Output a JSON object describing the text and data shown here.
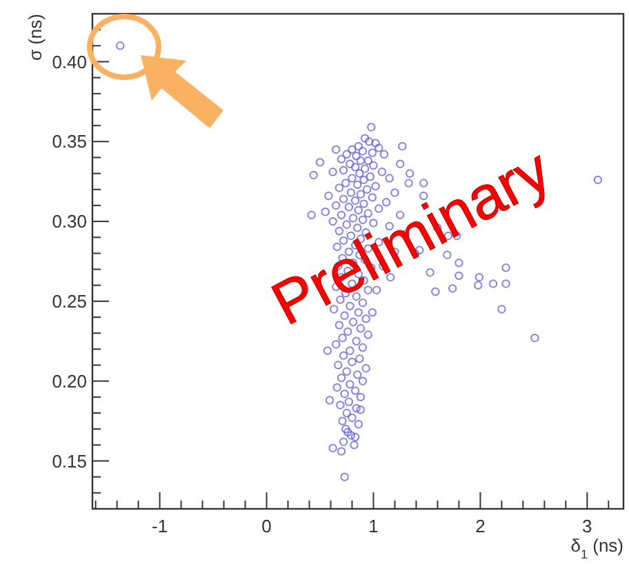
{
  "chart_data": {
    "type": "scatter",
    "xlabel": "δ$_{1}$ (ns)",
    "ylabel": "σ (ns)",
    "marker": "circle",
    "grid": false,
    "annotations": [
      "Preliminary"
    ],
    "xlim": [
      -1.63,
      3.34
    ],
    "ylim": [
      0.12,
      0.43
    ],
    "xticks": [
      {
        "value": -1.6,
        "label": null
      },
      {
        "value": -1.4,
        "label": null
      },
      {
        "value": -1.2,
        "label": null
      },
      -1,
      {
        "value": -0.8,
        "label": null
      },
      {
        "value": -0.6,
        "label": null
      },
      {
        "value": -0.4,
        "label": null
      },
      {
        "value": -0.2,
        "label": null
      },
      0,
      {
        "value": 0.2,
        "label": null
      },
      {
        "value": 0.4,
        "label": null
      },
      {
        "value": 0.6,
        "label": null
      },
      {
        "value": 0.8,
        "label": null
      },
      1,
      {
        "value": 1.2,
        "label": null
      },
      {
        "value": 1.4,
        "label": null
      },
      {
        "value": 1.6,
        "label": null
      },
      {
        "value": 1.8,
        "label": null
      },
      2,
      {
        "value": 2.2,
        "label": null
      },
      {
        "value": 2.4,
        "label": null
      },
      {
        "value": 2.6,
        "label": null
      },
      {
        "value": 2.8,
        "label": null
      },
      3,
      {
        "value": 3.2,
        "label": null
      }
    ],
    "yticks": [
      {
        "value": 0.12,
        "label": null
      },
      {
        "value": 0.13,
        "label": null
      },
      {
        "value": 0.14,
        "label": null
      },
      {
        "value": 0.15,
        "label": "0.15"
      },
      {
        "value": 0.16,
        "label": null
      },
      {
        "value": 0.17,
        "label": null
      },
      {
        "value": 0.18,
        "label": null
      },
      {
        "value": 0.19,
        "label": null
      },
      {
        "value": 0.2,
        "label": "0.20"
      },
      {
        "value": 0.21,
        "label": null
      },
      {
        "value": 0.22,
        "label": null
      },
      {
        "value": 0.23,
        "label": null
      },
      {
        "value": 0.24,
        "label": null
      },
      {
        "value": 0.25,
        "label": "0.25"
      },
      {
        "value": 0.26,
        "label": null
      },
      {
        "value": 0.27,
        "label": null
      },
      {
        "value": 0.28,
        "label": null
      },
      {
        "value": 0.29,
        "label": null
      },
      {
        "value": 0.3,
        "label": "0.30"
      },
      {
        "value": 0.31,
        "label": null
      },
      {
        "value": 0.32,
        "label": null
      },
      {
        "value": 0.33,
        "label": null
      },
      {
        "value": 0.34,
        "label": null
      },
      {
        "value": 0.35,
        "label": "0.35"
      },
      {
        "value": 0.36,
        "label": null
      },
      {
        "value": 0.37,
        "label": null
      },
      {
        "value": 0.38,
        "label": null
      },
      {
        "value": 0.39,
        "label": null
      },
      {
        "value": 0.4,
        "label": "0.40"
      },
      {
        "value": 0.41,
        "label": null
      },
      {
        "value": 0.42,
        "label": null
      }
    ],
    "series": [
      {
        "color": "#5b5bd6",
        "x": [
          -1.37,
          3.1,
          2.51,
          2.2,
          2.24,
          2.24,
          2.12,
          1.99,
          1.98,
          1.8,
          1.8,
          1.74,
          1.69,
          1.7,
          1.78,
          1.58,
          1.53,
          1.47,
          1.47,
          1.6,
          1.43,
          1.39,
          1.34,
          1.27,
          1.25,
          1.33,
          1.16,
          1.09,
          0.99,
          1.03,
          0.57,
          0.62,
          0.59,
          0.88,
          0.83,
          0.76,
          0.44,
          0.5,
          0.65,
          0.42,
          0.73,
          0.98,
          0.92,
          0.96,
          1.02,
          0.86,
          1.05,
          0.8,
          0.9,
          0.99,
          0.75,
          0.84,
          1.1,
          0.7,
          0.88,
          0.95,
          0.78,
          1.0,
          0.83,
          0.92,
          0.72,
          1.08,
          0.87,
          0.62,
          0.97,
          0.8,
          0.91,
          1.15,
          0.74,
          0.85,
          1.02,
          0.68,
          0.94,
          0.79,
          1.2,
          0.88,
          0.58,
          0.99,
          0.72,
          0.83,
          1.12,
          0.91,
          0.65,
          0.77,
          1.05,
          0.86,
          0.55,
          0.95,
          0.7,
          1.25,
          0.81,
          0.9,
          0.62,
          1.0,
          0.75,
          1.15,
          0.85,
          0.68,
          0.93,
          1.3,
          0.79,
          0.88,
          0.72,
          1.05,
          0.83,
          0.66,
          0.95,
          0.77,
          1.2,
          0.87,
          0.71,
          0.92,
          0.81,
          0.67,
          0.98,
          0.76,
          0.86,
          0.7,
          0.91,
          0.8,
          0.65,
          0.95,
          0.74,
          0.84,
          0.69,
          0.9,
          0.78,
          0.63,
          0.86,
          0.73,
          0.93,
          0.81,
          0.68,
          0.88,
          0.76,
          0.95,
          0.71,
          0.84,
          0.65,
          0.9,
          0.78,
          0.72,
          0.87,
          0.8,
          0.67,
          0.93,
          0.75,
          0.85,
          0.7,
          0.9,
          0.78,
          0.66,
          0.83,
          0.73,
          0.88,
          0.77,
          0.69,
          0.84,
          0.75,
          0.8,
          0.71,
          0.86,
          0.74,
          0.79,
          0.72,
          0.82,
          0.7
        ],
        "values": [
          0.41,
          0.326,
          0.227,
          0.245,
          0.271,
          0.261,
          0.261,
          0.265,
          0.26,
          0.266,
          0.274,
          0.258,
          0.279,
          0.291,
          0.291,
          0.256,
          0.268,
          0.324,
          0.316,
          0.296,
          0.282,
          0.28,
          0.33,
          0.347,
          0.336,
          0.324,
          0.265,
          0.272,
          0.243,
          0.257,
          0.219,
          0.158,
          0.188,
          0.182,
          0.165,
          0.168,
          0.329,
          0.337,
          0.345,
          0.304,
          0.14,
          0.359,
          0.352,
          0.35,
          0.349,
          0.347,
          0.346,
          0.345,
          0.344,
          0.343,
          0.342,
          0.341,
          0.342,
          0.339,
          0.338,
          0.338,
          0.336,
          0.335,
          0.334,
          0.333,
          0.332,
          0.331,
          0.33,
          0.331,
          0.328,
          0.327,
          0.326,
          0.327,
          0.324,
          0.323,
          0.322,
          0.321,
          0.32,
          0.318,
          0.318,
          0.317,
          0.316,
          0.315,
          0.314,
          0.313,
          0.312,
          0.311,
          0.31,
          0.309,
          0.308,
          0.307,
          0.306,
          0.305,
          0.304,
          0.304,
          0.302,
          0.301,
          0.3,
          0.299,
          0.298,
          0.297,
          0.296,
          0.294,
          0.293,
          0.292,
          0.291,
          0.289,
          0.288,
          0.287,
          0.285,
          0.284,
          0.283,
          0.281,
          0.281,
          0.279,
          0.277,
          0.276,
          0.274,
          0.272,
          0.271,
          0.269,
          0.267,
          0.265,
          0.263,
          0.261,
          0.259,
          0.257,
          0.255,
          0.253,
          0.251,
          0.249,
          0.247,
          0.245,
          0.243,
          0.241,
          0.239,
          0.237,
          0.235,
          0.233,
          0.231,
          0.229,
          0.227,
          0.225,
          0.223,
          0.221,
          0.219,
          0.216,
          0.214,
          0.212,
          0.21,
          0.208,
          0.206,
          0.204,
          0.202,
          0.2,
          0.198,
          0.196,
          0.194,
          0.192,
          0.19,
          0.187,
          0.185,
          0.183,
          0.18,
          0.177,
          0.175,
          0.173,
          0.17,
          0.166,
          0.162,
          0.16,
          0.156
        ]
      }
    ]
  }
}
